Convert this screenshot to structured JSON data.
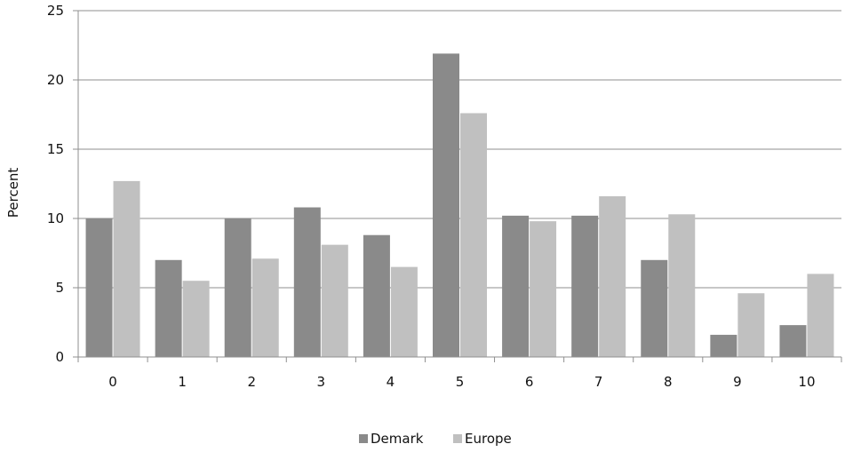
{
  "chart_data": {
    "type": "bar",
    "title": "",
    "xlabel": "",
    "ylabel": "Percent",
    "ylim": [
      0,
      25
    ],
    "yticks": [
      "0",
      "5",
      "10",
      "15",
      "20",
      "25"
    ],
    "categories": [
      "0",
      "1",
      "2",
      "3",
      "4",
      "5",
      "6",
      "7",
      "8",
      "9",
      "10"
    ],
    "series": [
      {
        "name": "Demark",
        "color": "#8a8a8a",
        "values": [
          10.0,
          7.0,
          10.0,
          10.8,
          8.8,
          21.9,
          10.2,
          10.2,
          7.0,
          1.6,
          2.3
        ]
      },
      {
        "name": "Europe",
        "color": "#c0c0c0",
        "values": [
          12.7,
          5.5,
          7.1,
          8.1,
          6.5,
          17.6,
          9.8,
          11.6,
          10.3,
          4.6,
          6.0
        ]
      }
    ],
    "grid": true,
    "legend_position": "bottom-center"
  }
}
